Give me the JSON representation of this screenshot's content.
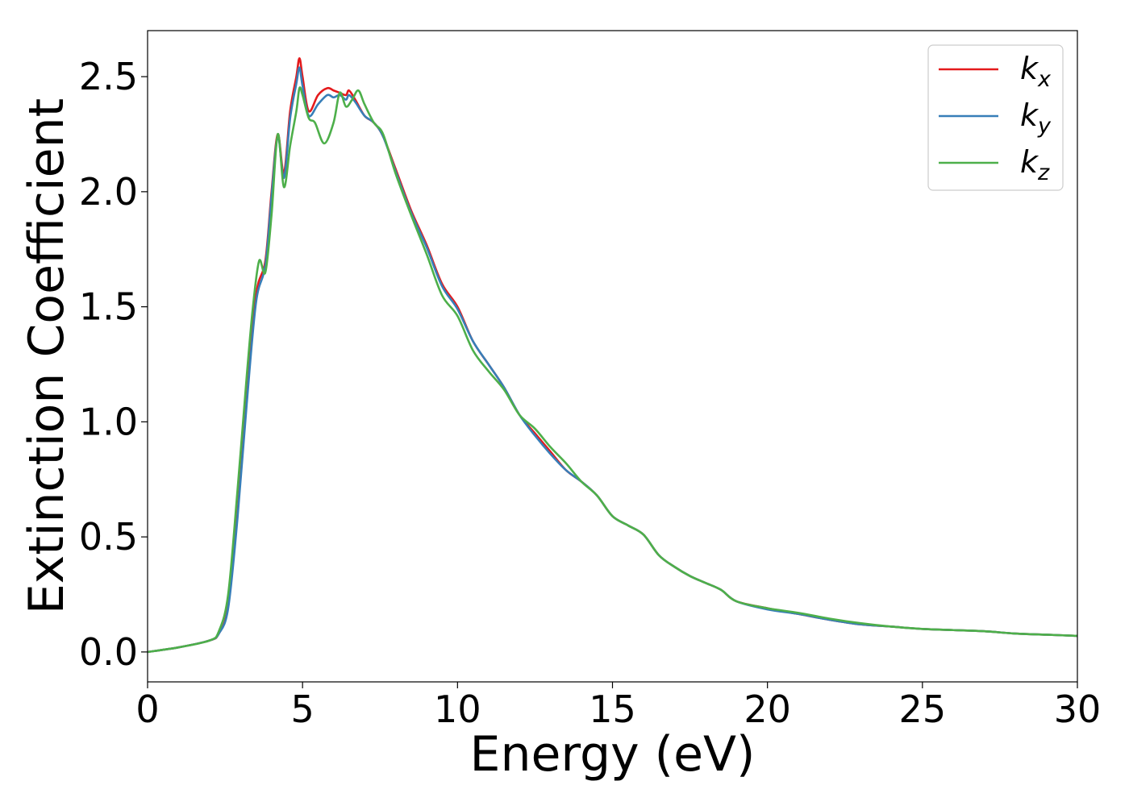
{
  "chart_data": {
    "type": "line",
    "title": "",
    "xlabel": "Energy (eV)",
    "ylabel": "Extinction Coefficient",
    "xlim": [
      0,
      30
    ],
    "ylim": [
      -0.13,
      2.7
    ],
    "xticks": [
      0,
      5,
      10,
      15,
      20,
      25,
      30
    ],
    "xtick_labels": [
      "0",
      "5",
      "10",
      "15",
      "20",
      "25",
      "30"
    ],
    "yticks": [
      0.0,
      0.5,
      1.0,
      1.5,
      2.0,
      2.5
    ],
    "ytick_labels": [
      "0.0",
      "0.5",
      "1.0",
      "1.5",
      "2.0",
      "2.5"
    ],
    "grid": false,
    "legend_position": "top-right",
    "series": [
      {
        "name": "kx",
        "legend_base": "k",
        "legend_sub": "x",
        "color": "#e41a1c",
        "x": [
          0,
          1,
          2,
          2.3,
          2.6,
          2.9,
          3.2,
          3.5,
          3.8,
          4.0,
          4.2,
          4.4,
          4.6,
          4.8,
          4.9,
          5.0,
          5.2,
          5.5,
          5.8,
          6.0,
          6.2,
          6.4,
          6.5,
          6.7,
          7.0,
          7.3,
          7.6,
          8.0,
          8.5,
          9.0,
          9.5,
          10.0,
          10.5,
          11.0,
          11.5,
          12.0,
          12.5,
          13.0,
          13.5,
          14.0,
          14.5,
          15.0,
          15.5,
          16.0,
          16.5,
          17.0,
          17.5,
          18.0,
          18.5,
          19.0,
          20.0,
          21.0,
          22.0,
          23.0,
          24.0,
          25.0,
          26.0,
          27.0,
          28.0,
          29.0,
          30.0
        ],
        "y": [
          0.0,
          0.02,
          0.05,
          0.08,
          0.2,
          0.6,
          1.1,
          1.55,
          1.7,
          2.0,
          2.25,
          2.08,
          2.35,
          2.5,
          2.58,
          2.5,
          2.35,
          2.42,
          2.45,
          2.44,
          2.43,
          2.42,
          2.44,
          2.4,
          2.33,
          2.3,
          2.24,
          2.1,
          1.92,
          1.77,
          1.6,
          1.5,
          1.35,
          1.25,
          1.15,
          1.03,
          0.95,
          0.87,
          0.79,
          0.74,
          0.68,
          0.59,
          0.55,
          0.51,
          0.42,
          0.37,
          0.33,
          0.3,
          0.27,
          0.22,
          0.19,
          0.165,
          0.14,
          0.12,
          0.11,
          0.1,
          0.095,
          0.09,
          0.08,
          0.075,
          0.07
        ]
      },
      {
        "name": "ky",
        "legend_base": "k",
        "legend_sub": "y",
        "color": "#377eb8",
        "x": [
          0,
          1,
          2,
          2.3,
          2.6,
          2.9,
          3.2,
          3.5,
          3.8,
          4.0,
          4.2,
          4.4,
          4.6,
          4.8,
          4.9,
          5.0,
          5.2,
          5.5,
          5.8,
          6.0,
          6.2,
          6.4,
          6.5,
          6.7,
          7.0,
          7.3,
          7.6,
          8.0,
          8.5,
          9.0,
          9.5,
          10.0,
          10.5,
          11.0,
          11.5,
          12.0,
          12.5,
          13.0,
          13.5,
          14.0,
          14.5,
          15.0,
          15.5,
          16.0,
          16.5,
          17.0,
          17.5,
          18.0,
          18.5,
          19.0,
          20.0,
          21.0,
          22.0,
          23.0,
          24.0,
          25.0,
          26.0,
          27.0,
          28.0,
          29.0,
          30.0
        ],
        "y": [
          0.0,
          0.02,
          0.05,
          0.08,
          0.19,
          0.58,
          1.08,
          1.52,
          1.68,
          1.98,
          2.24,
          2.06,
          2.32,
          2.47,
          2.54,
          2.46,
          2.33,
          2.38,
          2.42,
          2.41,
          2.42,
          2.4,
          2.42,
          2.39,
          2.33,
          2.3,
          2.24,
          2.09,
          1.91,
          1.76,
          1.59,
          1.49,
          1.35,
          1.25,
          1.15,
          1.03,
          0.94,
          0.86,
          0.79,
          0.74,
          0.68,
          0.59,
          0.55,
          0.51,
          0.42,
          0.37,
          0.33,
          0.3,
          0.27,
          0.22,
          0.185,
          0.165,
          0.14,
          0.12,
          0.11,
          0.1,
          0.095,
          0.09,
          0.08,
          0.075,
          0.07
        ]
      },
      {
        "name": "kz",
        "legend_base": "k",
        "legend_sub": "z",
        "color": "#4daf4a",
        "x": [
          0,
          1,
          2,
          2.3,
          2.6,
          2.9,
          3.2,
          3.4,
          3.6,
          3.8,
          4.0,
          4.2,
          4.4,
          4.6,
          4.8,
          4.9,
          5.0,
          5.2,
          5.4,
          5.7,
          6.0,
          6.2,
          6.4,
          6.6,
          6.8,
          7.0,
          7.3,
          7.6,
          8.0,
          8.5,
          9.0,
          9.5,
          10.0,
          10.5,
          11.0,
          11.5,
          12.0,
          12.5,
          13.0,
          13.5,
          14.0,
          14.5,
          15.0,
          15.5,
          16.0,
          16.5,
          17.0,
          17.5,
          18.0,
          18.5,
          19.0,
          20.0,
          21.0,
          22.0,
          23.0,
          24.0,
          25.0,
          26.0,
          27.0,
          28.0,
          29.0,
          30.0
        ],
        "y": [
          0.0,
          0.02,
          0.05,
          0.09,
          0.25,
          0.7,
          1.2,
          1.5,
          1.7,
          1.65,
          1.9,
          2.25,
          2.02,
          2.2,
          2.35,
          2.45,
          2.42,
          2.32,
          2.3,
          2.21,
          2.3,
          2.43,
          2.37,
          2.4,
          2.44,
          2.38,
          2.3,
          2.25,
          2.08,
          1.9,
          1.73,
          1.55,
          1.46,
          1.31,
          1.22,
          1.14,
          1.03,
          0.97,
          0.89,
          0.82,
          0.74,
          0.68,
          0.59,
          0.55,
          0.51,
          0.42,
          0.37,
          0.33,
          0.3,
          0.27,
          0.22,
          0.19,
          0.17,
          0.145,
          0.125,
          0.11,
          0.1,
          0.095,
          0.09,
          0.08,
          0.075,
          0.07
        ]
      }
    ]
  }
}
